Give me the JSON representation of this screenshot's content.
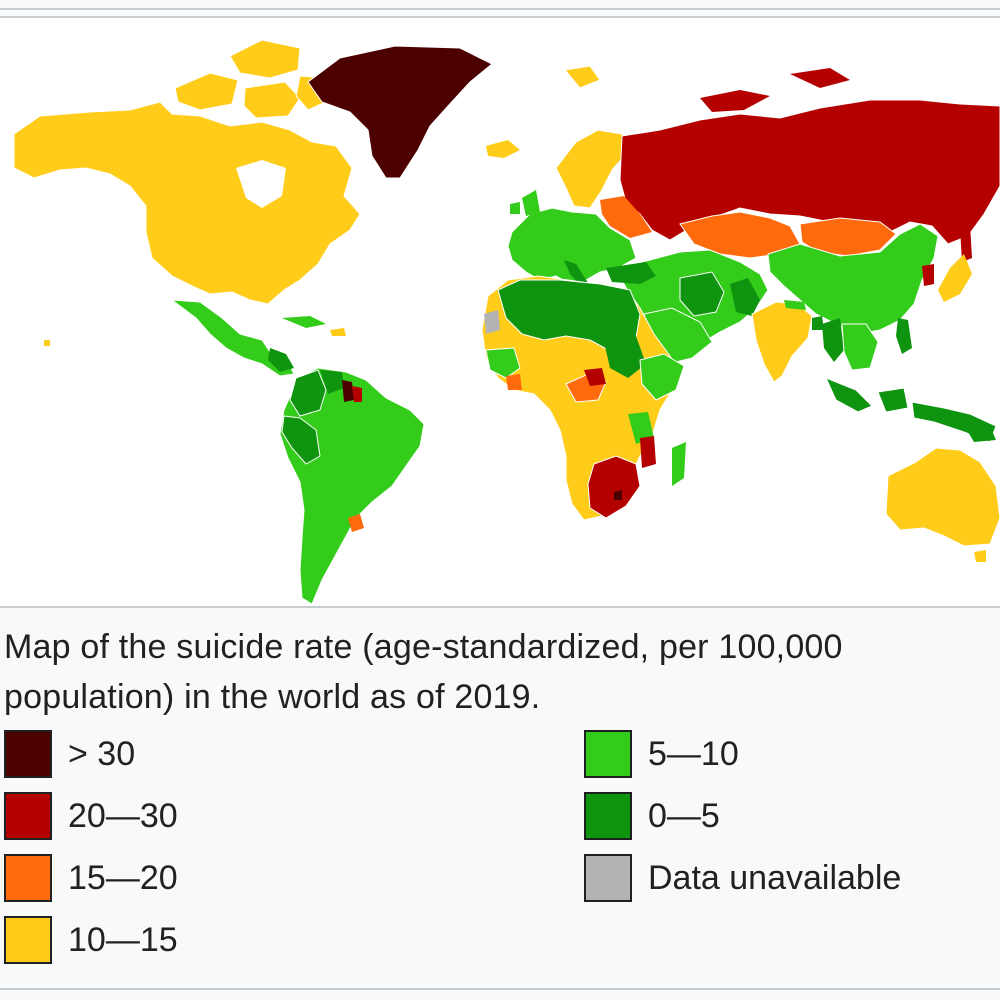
{
  "caption": "Map of the suicide rate (age-standardized, per 100,000 population) in the world as of 2019.",
  "colors": {
    "gt30": "#4d0000",
    "r20_30": "#b50000",
    "r15_20": "#ff6a0d",
    "r10_15": "#ffcc1a",
    "r5_10": "#33cc1a",
    "r0_5": "#0f9410",
    "na": "#b3b3b3"
  },
  "legend": {
    "left": [
      {
        "label": "> 30",
        "color": "#4d0000"
      },
      {
        "label": "20—30",
        "color": "#b50000"
      },
      {
        "label": "15—20",
        "color": "#ff6a0d"
      },
      {
        "label": "10—15",
        "color": "#ffcc1a"
      }
    ],
    "right": [
      {
        "label": "5—10",
        "color": "#33cc1a"
      },
      {
        "label": "0—5",
        "color": "#0f9410"
      },
      {
        "label": "Data unavailable",
        "color": "#b3b3b3"
      }
    ]
  }
}
